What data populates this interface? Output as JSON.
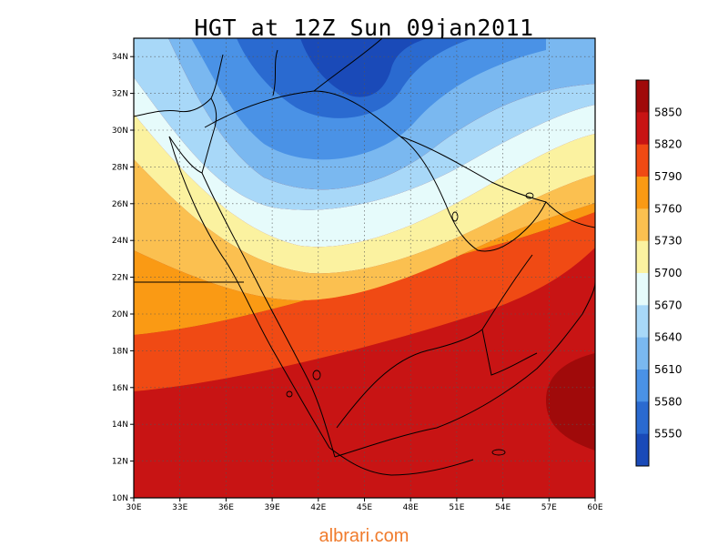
{
  "title": "HGT at 12Z Sun 09jan2011",
  "watermark": "albrari.com",
  "map": {
    "lon_range": [
      30,
      60
    ],
    "lat_range": [
      10,
      35
    ],
    "x_ticks": [
      "30E",
      "33E",
      "36E",
      "39E",
      "42E",
      "45E",
      "48E",
      "51E",
      "54E",
      "57E",
      "60E"
    ],
    "y_ticks": [
      "10N",
      "12N",
      "14N",
      "16N",
      "18N",
      "20N",
      "22N",
      "24N",
      "26N",
      "28N",
      "30N",
      "32N",
      "34N"
    ],
    "grid": true,
    "grid_style": "dotted"
  },
  "colorbar": {
    "labels": [
      "5850",
      "5820",
      "5790",
      "5760",
      "5730",
      "5700",
      "5670",
      "5640",
      "5610",
      "5580",
      "5550"
    ],
    "colors": [
      "#a00a0a",
      "#c81414",
      "#f04a14",
      "#fa9a14",
      "#fbc050",
      "#fbf2a0",
      "#e6fbfb",
      "#a8d8f8",
      "#7ab8f0",
      "#4a92e6",
      "#2a6ad0",
      "#1a4ab8"
    ]
  },
  "field_colors": {
    "deep_red": "#a00a0a",
    "red": "#c81414",
    "orange_red": "#f04a14",
    "orange": "#fa9a14",
    "light_orange": "#fbc050",
    "pale_yellow": "#fbf2a0",
    "pale_cyan": "#e6fbfb",
    "light_blue": "#a8d8f8",
    "mid_blue": "#7ab8f0",
    "blue": "#4a92e6",
    "deep_blue": "#2a6ad0"
  }
}
